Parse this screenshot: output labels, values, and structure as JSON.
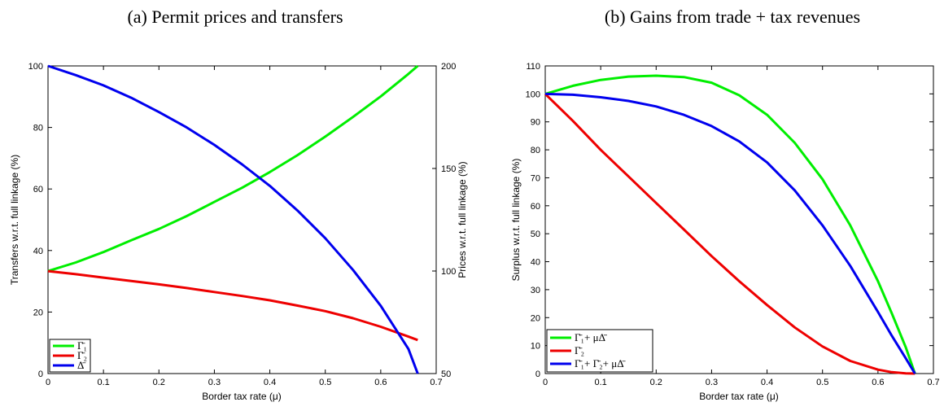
{
  "chart_data": [
    {
      "type": "line",
      "title": "(a) Permit prices and transfers",
      "xlabel": "Border tax rate (μ)",
      "ylabel": "Transfers w.r.t. full linkage (%)",
      "y2label": "Prices w.r.t. full linkage (%)",
      "xlim": [
        0,
        0.7
      ],
      "ylim": [
        0,
        100
      ],
      "y2lim": [
        50,
        200
      ],
      "xticks": [
        "0",
        "0.1",
        "0.2",
        "0.3",
        "0.4",
        "0.5",
        "0.6",
        "0.7"
      ],
      "yticks": [
        "0",
        "20",
        "40",
        "60",
        "80",
        "100"
      ],
      "y2ticks": [
        "50",
        "100",
        "150",
        "200"
      ],
      "grid": false,
      "legend_position": "bottom-left",
      "series": [
        {
          "name": "Γ̄₁",
          "color": "#00ee00",
          "axis": "left",
          "x": [
            0,
            0.05,
            0.1,
            0.15,
            0.2,
            0.25,
            0.3,
            0.35,
            0.4,
            0.45,
            0.5,
            0.55,
            0.6,
            0.65,
            0.6667
          ],
          "y": [
            33.3,
            36.1,
            39.5,
            43.3,
            47.0,
            51.2,
            55.8,
            60.4,
            65.5,
            71.0,
            77.0,
            83.4,
            90.1,
            97.4,
            100
          ]
        },
        {
          "name": "Γ̄₂",
          "color": "#ee0000",
          "axis": "left",
          "x": [
            0,
            0.05,
            0.1,
            0.15,
            0.2,
            0.25,
            0.3,
            0.35,
            0.4,
            0.45,
            0.5,
            0.55,
            0.6,
            0.65,
            0.6667
          ],
          "y": [
            33.3,
            32.3,
            31.2,
            30.1,
            29.0,
            27.8,
            26.5,
            25.2,
            23.8,
            22.1,
            20.3,
            18.0,
            15.2,
            12.0,
            10.9
          ]
        },
        {
          "name": "Δ̄",
          "color": "#0000ee",
          "axis": "right",
          "x": [
            0,
            0.05,
            0.1,
            0.15,
            0.2,
            0.25,
            0.3,
            0.35,
            0.4,
            0.45,
            0.5,
            0.55,
            0.6,
            0.65,
            0.6667
          ],
          "y": [
            200,
            195.5,
            190.5,
            184.5,
            177.5,
            170.0,
            161.5,
            152.0,
            141.5,
            129.5,
            116.0,
            100.5,
            83.0,
            62.0,
            50
          ]
        }
      ]
    },
    {
      "type": "line",
      "title": "(b) Gains from trade + tax revenues",
      "xlabel": "Border tax rate (μ)",
      "ylabel": "Surplus w.r.t. full linkage (%)",
      "xlim": [
        0,
        0.7
      ],
      "ylim": [
        0,
        110
      ],
      "xticks": [
        "0",
        "0.1",
        "0.2",
        "0.3",
        "0.4",
        "0.5",
        "0.6",
        "0.7"
      ],
      "yticks": [
        "0",
        "10",
        "20",
        "30",
        "40",
        "50",
        "60",
        "70",
        "80",
        "90",
        "100",
        "110"
      ],
      "grid": false,
      "legend_position": "bottom-left",
      "series": [
        {
          "name": "Γ̄₁+ μΔ̄",
          "color": "#00ee00",
          "x": [
            0,
            0.05,
            0.1,
            0.15,
            0.2,
            0.25,
            0.3,
            0.35,
            0.4,
            0.45,
            0.5,
            0.55,
            0.6,
            0.625,
            0.65,
            0.6667
          ],
          "y": [
            100,
            102.9,
            105.0,
            106.2,
            106.5,
            106.0,
            104.0,
            99.5,
            92.5,
            82.5,
            69.5,
            53.0,
            33.0,
            21.5,
            9.5,
            0
          ]
        },
        {
          "name": "Γ̄₂",
          "color": "#ee0000",
          "x": [
            0,
            0.05,
            0.1,
            0.15,
            0.2,
            0.25,
            0.3,
            0.35,
            0.4,
            0.45,
            0.5,
            0.55,
            0.6,
            0.625,
            0.65,
            0.6667
          ],
          "y": [
            100,
            90.3,
            80.0,
            70.5,
            61.0,
            51.5,
            42.0,
            33.0,
            24.5,
            16.5,
            9.7,
            4.5,
            1.4,
            0.5,
            0.1,
            0
          ]
        },
        {
          "name": "Γ̄₁+ Γ̄₂+ μΔ̄",
          "color": "#0000ee",
          "x": [
            0,
            0.05,
            0.1,
            0.15,
            0.2,
            0.25,
            0.3,
            0.35,
            0.4,
            0.45,
            0.5,
            0.55,
            0.6,
            0.625,
            0.65,
            0.6667
          ],
          "y": [
            100,
            99.7,
            98.8,
            97.5,
            95.5,
            92.5,
            88.5,
            83.0,
            75.5,
            65.5,
            53.0,
            38.5,
            22.0,
            13.5,
            5.5,
            0
          ]
        }
      ]
    }
  ]
}
